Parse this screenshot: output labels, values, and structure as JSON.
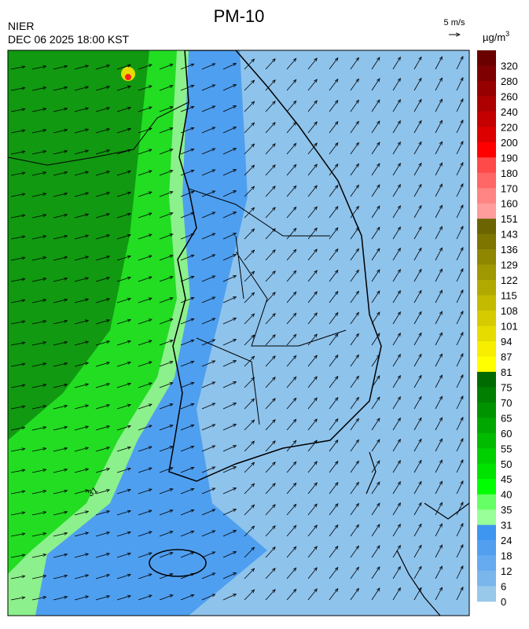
{
  "title": "PM-10",
  "agency": "NIER",
  "timestamp": "DEC 06 2025 18:00 KST",
  "wind_scale": "5 m/s",
  "unit": {
    "base": "µg/m",
    "exponent": "3"
  },
  "contour_label": "31",
  "colorbar": {
    "labels": [
      "320",
      "280",
      "260",
      "240",
      "220",
      "200",
      "190",
      "180",
      "170",
      "160",
      "151",
      "143",
      "136",
      "129",
      "122",
      "115",
      "108",
      "101",
      "94",
      "87",
      "81",
      "75",
      "70",
      "65",
      "60",
      "55",
      "50",
      "45",
      "40",
      "35",
      "31",
      "24",
      "18",
      "12",
      "6",
      "0"
    ],
    "colors": [
      "#6a0000",
      "#7e0000",
      "#960000",
      "#ad0000",
      "#c40000",
      "#dc0000",
      "#ff0000",
      "#ff4a4a",
      "#ff6666",
      "#ff8484",
      "#ff9c9c",
      "#6b6400",
      "#7d7500",
      "#8f8700",
      "#a09800",
      "#b2a900",
      "#c4ba00",
      "#d5cb00",
      "#e6dc00",
      "#f7ee00",
      "#ffff00",
      "#006b00",
      "#007f00",
      "#009300",
      "#00a700",
      "#00bb00",
      "#00cf00",
      "#00e300",
      "#00ff00",
      "#66ff66",
      "#99ff99",
      "#3f96f0",
      "#529ff0",
      "#66aaf0",
      "#7ab6ec",
      "#98c8ea"
    ]
  }
}
